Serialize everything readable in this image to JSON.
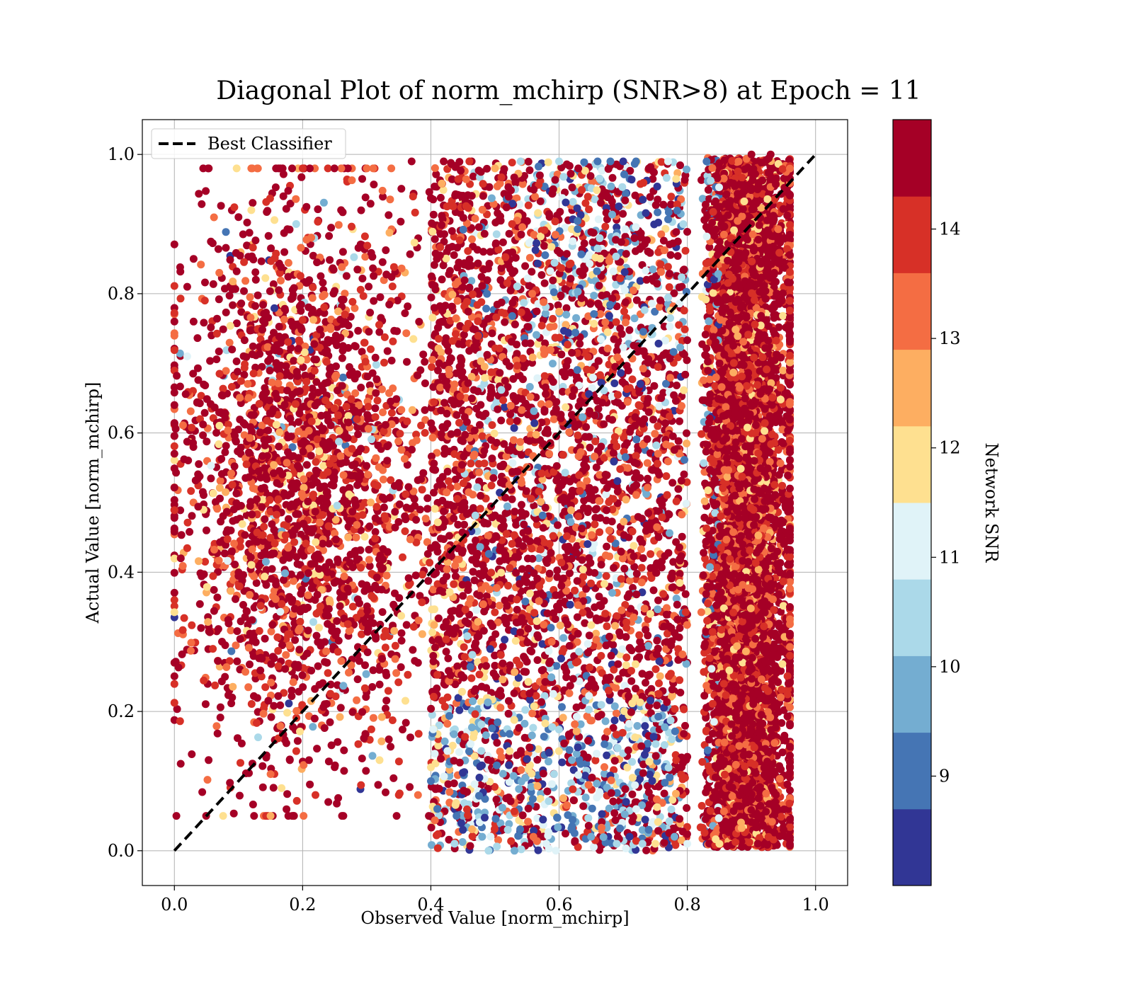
{
  "chart_data": {
    "type": "scatter",
    "title": "Diagonal Plot of norm_mchirp (SNR>8) at Epoch = 11",
    "xlabel": "Observed Value [norm_mchirp]",
    "ylabel": "Actual Value [norm_mchirp]",
    "xlim": [
      -0.05,
      1.05
    ],
    "ylim": [
      -0.05,
      1.05
    ],
    "xticks": [
      "0.0",
      "0.2",
      "0.4",
      "0.6",
      "0.8",
      "1.0"
    ],
    "yticks": [
      "0.0",
      "0.2",
      "0.4",
      "0.6",
      "0.8",
      "1.0"
    ],
    "xtick_values": [
      0,
      0.2,
      0.4,
      0.6,
      0.8,
      1.0
    ],
    "ytick_values": [
      0,
      0.2,
      0.4,
      0.6,
      0.8,
      1.0
    ],
    "grid": true,
    "legend": {
      "position": "top-left",
      "entries": [
        "Best Classifier"
      ]
    },
    "reference_line": {
      "name": "Best Classifier",
      "x": [
        0,
        1
      ],
      "y": [
        0,
        1
      ],
      "style": "dashed",
      "color": "#000000"
    },
    "colorbar": {
      "label": "Network SNR",
      "range": [
        8,
        15
      ],
      "tick_values": [
        9,
        10,
        11,
        12,
        13,
        14
      ],
      "ticks": [
        "9",
        "10",
        "11",
        "12",
        "13",
        "14"
      ],
      "bins": [
        8,
        8.7,
        9.4,
        10.1,
        10.8,
        11.5,
        12.2,
        12.9,
        13.6,
        14.3,
        15
      ],
      "colors": [
        "#313695",
        "#4575b4",
        "#74add1",
        "#abd9e9",
        "#e0f3f8",
        "#fee090",
        "#fdae61",
        "#f46d43",
        "#d73027",
        "#a50026"
      ]
    },
    "series": [
      {
        "description_key": "points",
        "points": [
          [
            0.0,
            0.64,
            14.8
          ],
          [
            0.0,
            0.27,
            14.9
          ],
          [
            0.01,
            0.42,
            14.8
          ],
          [
            0.02,
            0.71,
            11.2
          ],
          [
            0.02,
            0.81,
            14.9
          ],
          [
            0.03,
            0.85,
            14.9
          ],
          [
            0.03,
            0.76,
            14.8
          ],
          [
            0.05,
            0.46,
            14.9
          ],
          [
            0.06,
            0.29,
            13.8
          ],
          [
            0.07,
            0.83,
            13.2
          ],
          [
            0.09,
            0.22,
            14.9
          ],
          [
            0.1,
            0.91,
            14.7
          ],
          [
            0.12,
            0.98,
            13.5
          ],
          [
            0.12,
            0.92,
            12.1
          ],
          [
            0.14,
            0.59,
            14.9
          ],
          [
            0.15,
            0.05,
            12.3
          ],
          [
            0.15,
            0.11,
            13.4
          ],
          [
            0.17,
            0.94,
            14.5
          ],
          [
            0.18,
            0.13,
            14.9
          ],
          [
            0.19,
            0.9,
            10.4
          ],
          [
            0.2,
            0.98,
            13.6
          ],
          [
            0.21,
            0.13,
            14.9
          ],
          [
            0.22,
            0.08,
            13.8
          ],
          [
            0.24,
            0.07,
            14.9
          ],
          [
            0.25,
            0.12,
            14.8
          ],
          [
            0.26,
            0.92,
            14.7
          ],
          [
            0.3,
            0.98,
            13.4
          ],
          [
            0.31,
            0.98,
            13.3
          ],
          [
            0.32,
            0.13,
            12.1
          ],
          [
            0.35,
            0.08,
            13.6
          ],
          [
            0.37,
            0.99,
            14.8
          ],
          [
            0.38,
            0.08,
            13.5
          ],
          [
            0.4,
            0.1,
            9.1
          ],
          [
            0.41,
            0.06,
            9.3
          ],
          [
            0.42,
            0.99,
            14.8
          ],
          [
            0.44,
            0.05,
            9.1
          ],
          [
            0.45,
            0.03,
            8.6
          ],
          [
            0.46,
            0.99,
            13.7
          ],
          [
            0.48,
            0.02,
            9.8
          ],
          [
            0.49,
            0.0,
            10.2
          ],
          [
            0.5,
            0.98,
            12.8
          ],
          [
            0.52,
            0.03,
            10.4
          ],
          [
            0.54,
            0.99,
            10.1
          ],
          [
            0.56,
            0.02,
            13.3
          ],
          [
            0.57,
            0.97,
            14.6
          ],
          [
            0.58,
            0.01,
            11.4
          ],
          [
            0.6,
            0.99,
            10.6
          ],
          [
            0.62,
            0.03,
            8.9
          ],
          [
            0.63,
            0.98,
            14.9
          ],
          [
            0.65,
            0.02,
            9.8
          ],
          [
            0.66,
            0.99,
            9.1
          ],
          [
            0.68,
            0.99,
            8.8
          ],
          [
            0.69,
            0.01,
            10.7
          ],
          [
            0.7,
            0.99,
            8.4
          ],
          [
            0.71,
            0.02,
            8.5
          ],
          [
            0.72,
            0.99,
            8.7
          ],
          [
            0.73,
            0.01,
            10.3
          ],
          [
            0.74,
            0.98,
            14.9
          ],
          [
            0.75,
            0.01,
            12.1
          ],
          [
            0.77,
            0.99,
            11.3
          ],
          [
            0.78,
            0.02,
            9.4
          ],
          [
            0.8,
            0.01,
            10.9
          ],
          [
            0.83,
            0.99,
            8.9
          ],
          [
            0.85,
            0.01,
            11.6
          ],
          [
            0.88,
            0.99,
            13.5
          ],
          [
            0.9,
            1.0,
            14.9
          ],
          [
            0.91,
            0.01,
            14.8
          ],
          [
            0.93,
            1.0,
            14.9
          ],
          [
            0.95,
            0.03,
            14.9
          ],
          [
            0.96,
            0.28,
            13.6
          ]
        ]
      }
    ]
  }
}
